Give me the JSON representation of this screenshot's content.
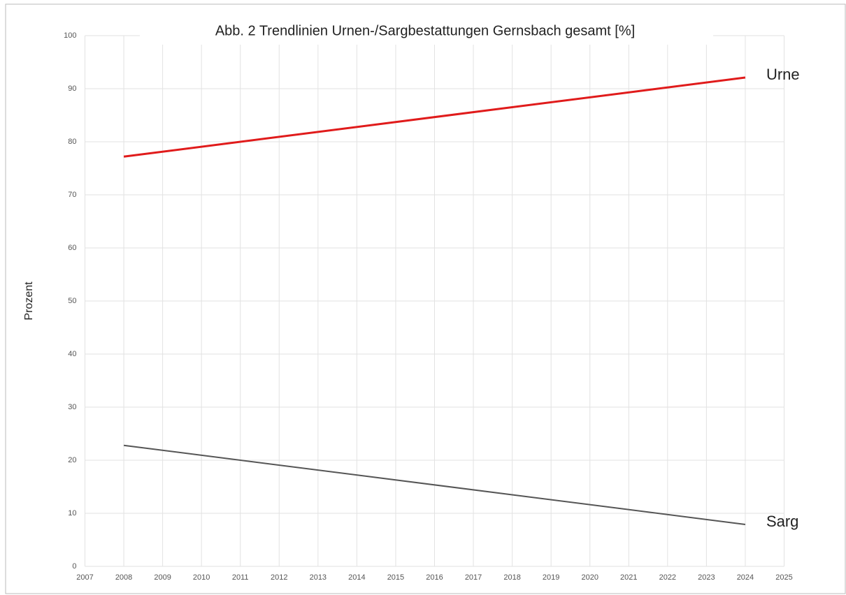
{
  "chart_data": {
    "type": "line",
    "title": "Abb. 2 Trendlinien Urnen-/Sargbestattungen Gernsbach gesamt [%]",
    "ylabel": "Prozent",
    "x": [
      2008,
      2024
    ],
    "series": [
      {
        "name": "Urne",
        "color": "#e01b1b",
        "values": [
          77.2,
          92.1
        ]
      },
      {
        "name": "Sarg",
        "color": "#555555",
        "values": [
          22.8,
          7.9
        ]
      }
    ],
    "xlim": [
      2007,
      2025
    ],
    "xticks": [
      2007,
      2008,
      2009,
      2010,
      2011,
      2012,
      2013,
      2014,
      2015,
      2016,
      2017,
      2018,
      2019,
      2020,
      2021,
      2022,
      2023,
      2024,
      2025
    ],
    "ylim": [
      0,
      100
    ],
    "yticks": [
      0,
      10,
      20,
      30,
      40,
      50,
      60,
      70,
      80,
      90,
      100
    ],
    "grid": true
  }
}
